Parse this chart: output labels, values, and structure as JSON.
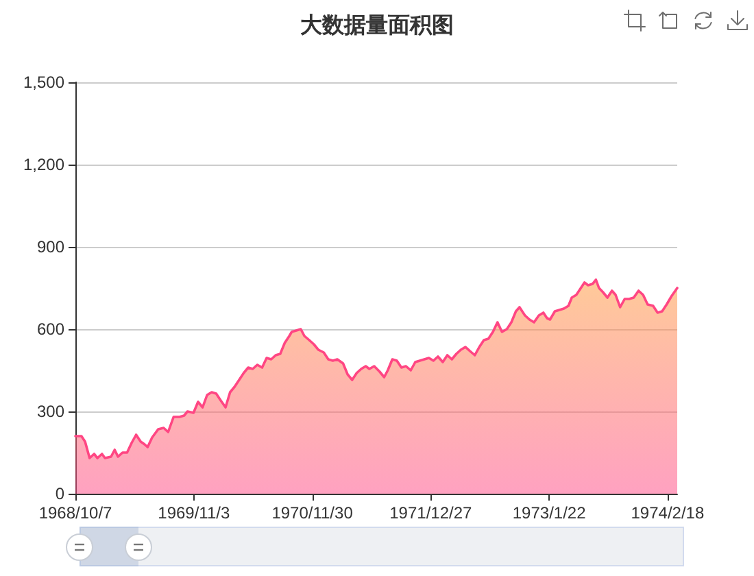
{
  "chart_data": {
    "type": "area",
    "title": "大数据量面积图",
    "x": [
      "1968-10-07",
      "1968-10-27",
      "1968-11-08",
      "1968-11-23",
      "1968-12-08",
      "1968-12-19",
      "1969-01-03",
      "1969-01-13",
      "1969-02-02",
      "1969-02-14",
      "1969-02-25",
      "1969-03-12",
      "1969-03-27",
      "1969-04-11",
      "1969-04-26",
      "1969-05-11",
      "1969-05-24",
      "1969-06-03",
      "1969-06-18",
      "1969-07-08",
      "1969-07-26",
      "1969-08-10",
      "1969-08-28",
      "1969-09-17",
      "1969-10-02",
      "1969-10-13",
      "1969-11-02",
      "1969-11-17",
      "1969-12-02",
      "1969-12-17",
      "1970-01-01",
      "1970-01-16",
      "1970-01-31",
      "1970-02-16",
      "1970-03-03",
      "1970-03-18",
      "1970-04-02",
      "1970-04-17",
      "1970-05-02",
      "1970-05-17",
      "1970-06-01",
      "1970-06-17",
      "1970-07-02",
      "1970-07-17",
      "1970-08-01",
      "1970-08-16",
      "1970-08-31",
      "1970-09-15",
      "1970-09-23",
      "1970-10-08",
      "1970-10-23",
      "1970-11-04",
      "1970-11-20",
      "1970-12-05",
      "1970-12-20",
      "1971-01-07",
      "1971-01-22",
      "1971-02-06",
      "1971-02-21",
      "1971-03-12",
      "1971-03-27",
      "1971-04-11",
      "1971-04-26",
      "1971-05-11",
      "1971-05-26",
      "1971-06-07",
      "1971-06-23",
      "1971-07-11",
      "1971-07-26",
      "1971-08-07",
      "1971-08-22",
      "1971-09-06",
      "1971-09-21",
      "1971-10-06",
      "1971-10-22",
      "1971-11-06",
      "1971-11-21",
      "1971-12-06",
      "1971-12-21",
      "1972-01-05",
      "1972-01-20",
      "1972-02-05",
      "1972-02-20",
      "1972-03-06",
      "1972-03-21",
      "1972-04-05",
      "1972-04-20",
      "1972-05-05",
      "1972-05-21",
      "1972-06-05",
      "1972-06-20",
      "1972-07-05",
      "1972-07-20",
      "1972-08-04",
      "1972-08-19",
      "1972-09-04",
      "1972-09-19",
      "1972-10-04",
      "1972-10-16",
      "1972-11-03",
      "1972-11-18",
      "1972-12-03",
      "1972-12-19",
      "1973-01-03",
      "1973-01-15",
      "1973-01-25",
      "1973-02-10",
      "1973-02-25",
      "1973-03-12",
      "1973-03-27",
      "1973-04-07",
      "1973-04-22",
      "1973-05-07",
      "1973-05-19",
      "1973-05-31",
      "1973-06-15",
      "1973-06-26",
      "1973-07-06",
      "1973-07-19",
      "1973-08-03",
      "1973-08-18",
      "1973-08-30",
      "1973-09-14",
      "1973-09-29",
      "1973-10-14",
      "1973-10-29",
      "1973-11-14",
      "1973-11-29",
      "1973-12-14",
      "1974-01-01",
      "1974-01-16",
      "1974-01-31",
      "1974-02-15",
      "1974-03-03",
      "1974-03-22"
    ],
    "values": [
      210,
      210,
      190,
      130,
      145,
      130,
      145,
      130,
      135,
      160,
      135,
      150,
      150,
      185,
      215,
      190,
      180,
      170,
      205,
      235,
      240,
      225,
      280,
      280,
      285,
      300,
      295,
      335,
      315,
      360,
      370,
      365,
      340,
      315,
      370,
      390,
      415,
      440,
      460,
      455,
      470,
      460,
      495,
      490,
      505,
      510,
      550,
      575,
      590,
      595,
      600,
      575,
      560,
      545,
      525,
      515,
      490,
      485,
      490,
      475,
      435,
      415,
      440,
      455,
      465,
      455,
      465,
      445,
      425,
      450,
      490,
      485,
      460,
      465,
      450,
      480,
      485,
      490,
      495,
      485,
      500,
      480,
      505,
      490,
      510,
      525,
      535,
      520,
      505,
      535,
      560,
      565,
      590,
      625,
      590,
      600,
      625,
      665,
      680,
      650,
      635,
      625,
      650,
      660,
      640,
      635,
      665,
      670,
      675,
      685,
      715,
      725,
      750,
      770,
      760,
      765,
      780,
      750,
      735,
      715,
      740,
      725,
      680,
      710,
      710,
      715,
      740,
      725,
      690,
      685,
      660,
      665,
      690,
      720,
      750
    ],
    "color": "#ff4683",
    "xlim": [
      "1968-10-07",
      "1974-03-22"
    ],
    "xticks": [
      {
        "value": "1968-10-07",
        "label": "1968/10/7"
      },
      {
        "value": "1969-11-03",
        "label": "1969/11/3"
      },
      {
        "value": "1970-11-30",
        "label": "1970/11/30"
      },
      {
        "value": "1971-12-27",
        "label": "1971/12/27"
      },
      {
        "value": "1973-01-22",
        "label": "1973/1/22"
      },
      {
        "value": "1974-02-18",
        "label": "1974/2/18"
      }
    ],
    "ylim": [
      0,
      1500
    ],
    "yticks": [
      0,
      300,
      600,
      900,
      {
        "value": 1200,
        "label": "1,200"
      },
      {
        "value": 1500,
        "label": "1,500"
      }
    ],
    "grid": "y",
    "marker": "none"
  }
}
